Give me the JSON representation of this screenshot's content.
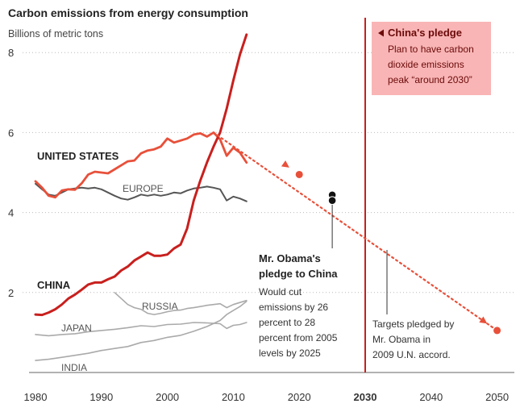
{
  "chart_data": {
    "type": "line",
    "title": "Carbon emissions from energy consumption",
    "subtitle": "Billions of metric tons",
    "xlim": [
      1978,
      2052
    ],
    "ylim": [
      0,
      8.6
    ],
    "x_ticks": [
      "1980",
      "1990",
      "2000",
      "2010",
      "2020",
      "2030",
      "2040",
      "2050"
    ],
    "y_ticks": [
      "2",
      "4",
      "6",
      "8"
    ],
    "grid": "horizontal dotted",
    "series": [
      {
        "name": "UNITED STATES",
        "color": "#e8503a",
        "points": [
          [
            1980,
            4.78
          ],
          [
            1981,
            4.62
          ],
          [
            1982,
            4.42
          ],
          [
            1983,
            4.38
          ],
          [
            1984,
            4.55
          ],
          [
            1985,
            4.58
          ],
          [
            1986,
            4.57
          ],
          [
            1987,
            4.73
          ],
          [
            1988,
            4.95
          ],
          [
            1989,
            5.02
          ],
          [
            1990,
            5.0
          ],
          [
            1991,
            4.98
          ],
          [
            1992,
            5.08
          ],
          [
            1993,
            5.18
          ],
          [
            1994,
            5.28
          ],
          [
            1995,
            5.3
          ],
          [
            1996,
            5.48
          ],
          [
            1997,
            5.55
          ],
          [
            1998,
            5.58
          ],
          [
            1999,
            5.65
          ],
          [
            2000,
            5.85
          ],
          [
            2001,
            5.75
          ],
          [
            2002,
            5.8
          ],
          [
            2003,
            5.85
          ],
          [
            2004,
            5.95
          ],
          [
            2005,
            5.98
          ],
          [
            2006,
            5.9
          ],
          [
            2007,
            6.0
          ],
          [
            2008,
            5.83
          ],
          [
            2009,
            5.42
          ],
          [
            2010,
            5.62
          ],
          [
            2011,
            5.5
          ],
          [
            2012,
            5.25
          ]
        ]
      },
      {
        "name": "EUROPE",
        "color": "#555555",
        "points": [
          [
            1980,
            4.72
          ],
          [
            1981,
            4.58
          ],
          [
            1982,
            4.45
          ],
          [
            1983,
            4.42
          ],
          [
            1984,
            4.5
          ],
          [
            1985,
            4.58
          ],
          [
            1986,
            4.6
          ],
          [
            1987,
            4.62
          ],
          [
            1988,
            4.6
          ],
          [
            1989,
            4.62
          ],
          [
            1990,
            4.58
          ],
          [
            1991,
            4.5
          ],
          [
            1992,
            4.42
          ],
          [
            1993,
            4.35
          ],
          [
            1994,
            4.32
          ],
          [
            1995,
            4.38
          ],
          [
            1996,
            4.45
          ],
          [
            1997,
            4.42
          ],
          [
            1998,
            4.45
          ],
          [
            1999,
            4.42
          ],
          [
            2000,
            4.45
          ],
          [
            2001,
            4.5
          ],
          [
            2002,
            4.48
          ],
          [
            2003,
            4.55
          ],
          [
            2004,
            4.6
          ],
          [
            2005,
            4.62
          ],
          [
            2006,
            4.65
          ],
          [
            2007,
            4.62
          ],
          [
            2008,
            4.58
          ],
          [
            2009,
            4.3
          ],
          [
            2010,
            4.4
          ],
          [
            2011,
            4.35
          ],
          [
            2012,
            4.28
          ]
        ]
      },
      {
        "name": "CHINA",
        "color": "#c8201e",
        "points": [
          [
            1980,
            1.45
          ],
          [
            1981,
            1.44
          ],
          [
            1982,
            1.5
          ],
          [
            1983,
            1.58
          ],
          [
            1984,
            1.7
          ],
          [
            1985,
            1.85
          ],
          [
            1986,
            1.95
          ],
          [
            1987,
            2.07
          ],
          [
            1988,
            2.2
          ],
          [
            1989,
            2.25
          ],
          [
            1990,
            2.25
          ],
          [
            1991,
            2.33
          ],
          [
            1992,
            2.4
          ],
          [
            1993,
            2.55
          ],
          [
            1994,
            2.65
          ],
          [
            1995,
            2.8
          ],
          [
            1996,
            2.9
          ],
          [
            1997,
            3.0
          ],
          [
            1998,
            2.92
          ],
          [
            1999,
            2.92
          ],
          [
            2000,
            2.95
          ],
          [
            2001,
            3.1
          ],
          [
            2002,
            3.2
          ],
          [
            2003,
            3.6
          ],
          [
            2004,
            4.3
          ],
          [
            2005,
            4.8
          ],
          [
            2006,
            5.25
          ],
          [
            2007,
            5.65
          ],
          [
            2008,
            6.0
          ],
          [
            2009,
            6.6
          ],
          [
            2010,
            7.3
          ],
          [
            2011,
            7.95
          ],
          [
            2012,
            8.45
          ]
        ]
      },
      {
        "name": "RUSSIA",
        "color": "#aaaaaa",
        "points": [
          [
            1992,
            2.0
          ],
          [
            1993,
            1.85
          ],
          [
            1994,
            1.7
          ],
          [
            1995,
            1.62
          ],
          [
            1996,
            1.58
          ],
          [
            1997,
            1.48
          ],
          [
            1998,
            1.45
          ],
          [
            1999,
            1.48
          ],
          [
            2000,
            1.52
          ],
          [
            2001,
            1.55
          ],
          [
            2002,
            1.56
          ],
          [
            2003,
            1.6
          ],
          [
            2004,
            1.62
          ],
          [
            2005,
            1.65
          ],
          [
            2006,
            1.68
          ],
          [
            2007,
            1.7
          ],
          [
            2008,
            1.72
          ],
          [
            2009,
            1.62
          ],
          [
            2010,
            1.7
          ],
          [
            2011,
            1.75
          ],
          [
            2012,
            1.8
          ]
        ]
      },
      {
        "name": "JAPAN",
        "color": "#aaaaaa",
        "points": [
          [
            1980,
            0.95
          ],
          [
            1982,
            0.92
          ],
          [
            1984,
            0.95
          ],
          [
            1986,
            0.97
          ],
          [
            1988,
            1.02
          ],
          [
            1990,
            1.05
          ],
          [
            1992,
            1.08
          ],
          [
            1994,
            1.12
          ],
          [
            1996,
            1.17
          ],
          [
            1998,
            1.15
          ],
          [
            2000,
            1.2
          ],
          [
            2002,
            1.21
          ],
          [
            2004,
            1.25
          ],
          [
            2006,
            1.24
          ],
          [
            2008,
            1.22
          ],
          [
            2009,
            1.1
          ],
          [
            2010,
            1.18
          ],
          [
            2011,
            1.2
          ],
          [
            2012,
            1.25
          ]
        ]
      },
      {
        "name": "INDIA",
        "color": "#aaaaaa",
        "points": [
          [
            1980,
            0.3
          ],
          [
            1982,
            0.33
          ],
          [
            1984,
            0.38
          ],
          [
            1986,
            0.43
          ],
          [
            1988,
            0.48
          ],
          [
            1990,
            0.55
          ],
          [
            1992,
            0.6
          ],
          [
            1994,
            0.65
          ],
          [
            1996,
            0.75
          ],
          [
            1998,
            0.8
          ],
          [
            2000,
            0.88
          ],
          [
            2002,
            0.93
          ],
          [
            2004,
            1.03
          ],
          [
            2006,
            1.15
          ],
          [
            2008,
            1.3
          ],
          [
            2009,
            1.45
          ],
          [
            2010,
            1.55
          ],
          [
            2011,
            1.65
          ],
          [
            2012,
            1.78
          ]
        ]
      }
    ],
    "projection": {
      "color": "#e8503a",
      "points": [
        [
          2007,
          6.0
        ],
        [
          2050,
          1.05
        ]
      ],
      "targets": [
        [
          2020,
          4.95
        ],
        [
          2050,
          1.05
        ]
      ]
    },
    "obama_pledge": {
      "points": [
        [
          2025,
          4.44
        ],
        [
          2025,
          4.3
        ]
      ],
      "heading": [
        "Mr. Obama's",
        "pledge to China"
      ],
      "body": [
        "Would cut",
        "emissions by 26",
        "percent to 28",
        "percent from 2005",
        "levels by 2025"
      ]
    },
    "un_accord": {
      "text": [
        "Targets pledged by",
        "Mr. Obama in",
        "2009 U.N. accord."
      ]
    },
    "china_pledge": {
      "year": 2030,
      "color": "#c8201e",
      "box_color": "#f9b5b5",
      "heading": "China's pledge",
      "body": [
        "Plan to have carbon",
        "dioxide emissions",
        "peak “around 2030”"
      ]
    }
  }
}
